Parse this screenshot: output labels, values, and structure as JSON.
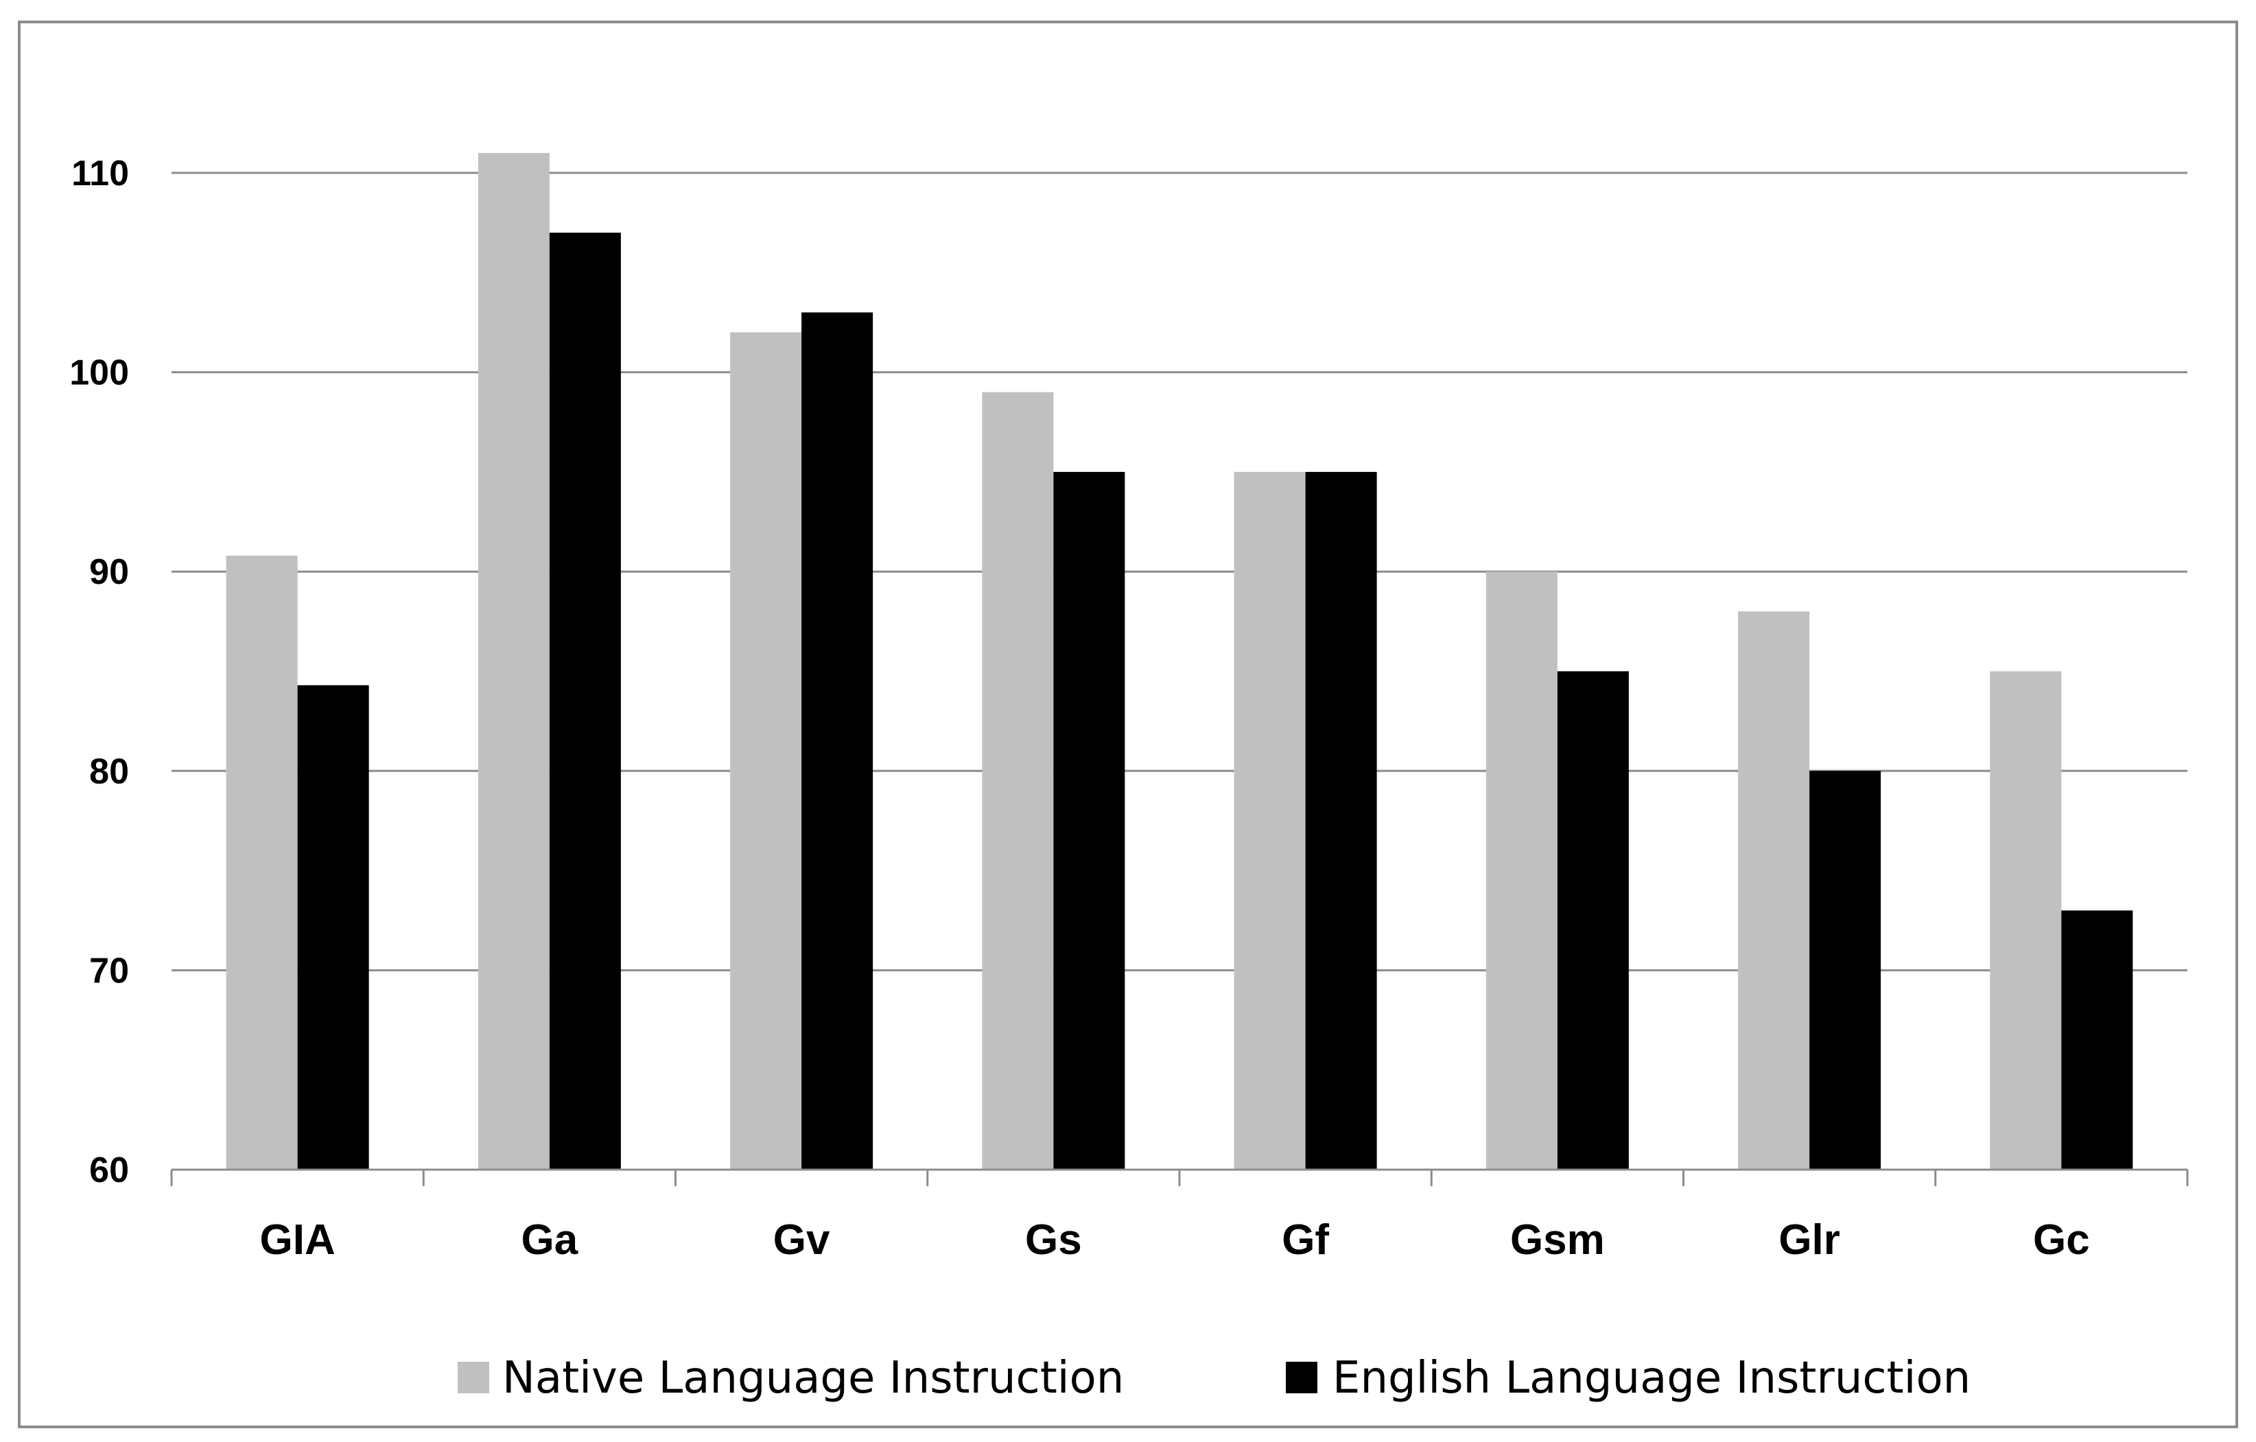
{
  "chart_data": {
    "type": "bar",
    "title": "",
    "xlabel": "",
    "ylabel": "",
    "categories": [
      "GIA",
      "Ga",
      "Gv",
      "Gs",
      "Gf",
      "Gsm",
      "Glr",
      "Gc"
    ],
    "series": [
      {
        "name": "Native Language Instruction",
        "color": "#c0c0c0",
        "values": [
          90.8,
          111,
          102,
          99,
          95,
          90,
          88,
          85
        ]
      },
      {
        "name": "English Language Instruction",
        "color": "#000000",
        "values": [
          84.3,
          107,
          103,
          95,
          95,
          85,
          80,
          73
        ]
      }
    ],
    "ylim": [
      60,
      110
    ],
    "yticks": [
      60,
      70,
      80,
      90,
      100,
      110
    ],
    "grid": true,
    "legend_position": "bottom"
  }
}
